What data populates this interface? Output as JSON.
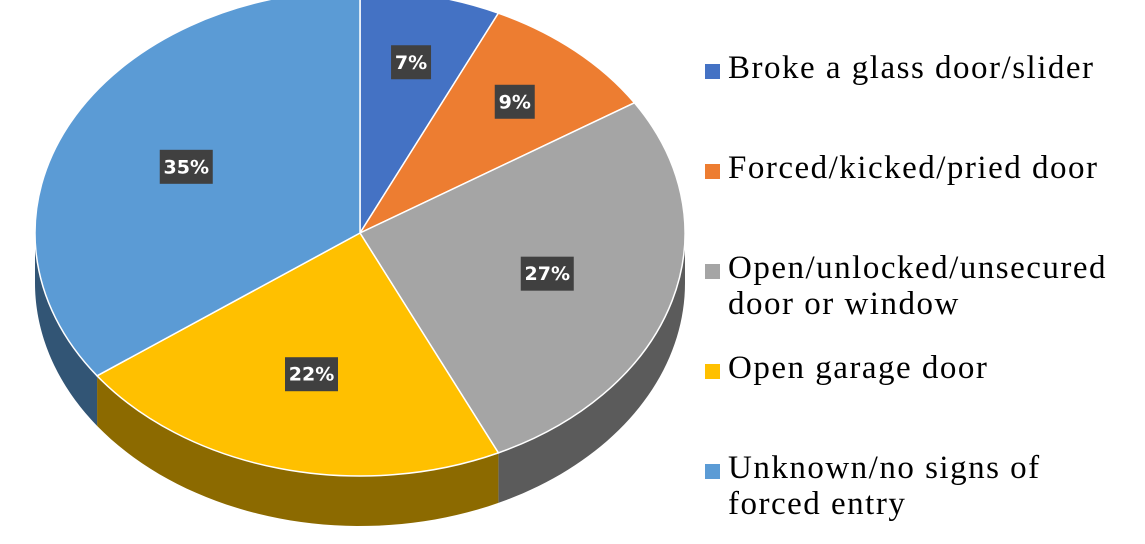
{
  "chart_data": {
    "type": "pie",
    "categories": [
      "Broke a glass door/slider",
      "Forced/kicked/pried door",
      "Open/unlocked/unsecured door or window",
      "Open garage door",
      "Unknown/no signs of forced entry"
    ],
    "values": [
      7,
      9,
      27,
      22,
      35
    ],
    "value_labels": [
      "7%",
      "9%",
      "27%",
      "22%",
      "35%"
    ],
    "colors": [
      "#4472c4",
      "#ed7d31",
      "#a5a5a5",
      "#ffc000",
      "#5b9bd5"
    ],
    "legend": "right"
  }
}
